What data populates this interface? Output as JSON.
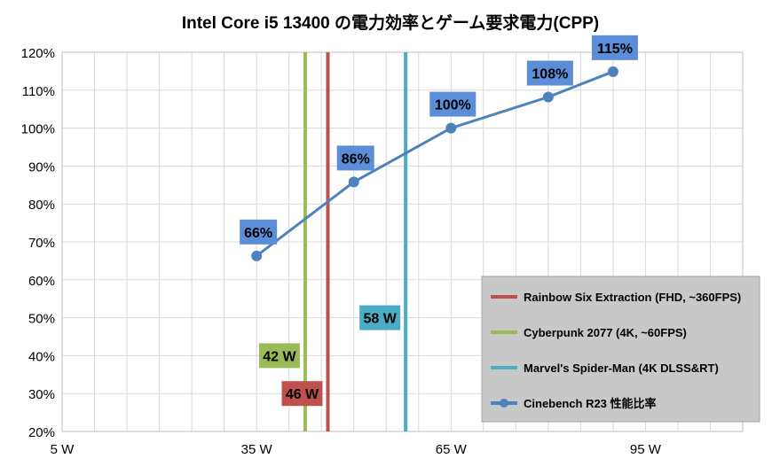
{
  "colors": {
    "rainbow": "#c0504d",
    "cyberpunk": "#9bbb59",
    "spiderman": "#4bacc6",
    "cinebench": "#4f81bd",
    "label_box": "#5b8ed6",
    "legend_bg": "#c8c8c8",
    "grid": "#d9d9d9"
  },
  "chart_data": {
    "type": "line",
    "title": "Intel Core i5 13400 の電力効率とゲーム要求電力(CPP)",
    "xlim": [
      5,
      110
    ],
    "ylim": [
      20,
      120
    ],
    "x_ticks": [
      {
        "value": 5,
        "label": "5 W"
      },
      {
        "value": 35,
        "label": "35 W"
      },
      {
        "value": 65,
        "label": "65 W"
      },
      {
        "value": 95,
        "label": "95 W"
      }
    ],
    "x_grid_step": 5,
    "y_ticks": [
      {
        "value": 20,
        "label": "20%"
      },
      {
        "value": 30,
        "label": "30%"
      },
      {
        "value": 40,
        "label": "40%"
      },
      {
        "value": 50,
        "label": "50%"
      },
      {
        "value": 60,
        "label": "60%"
      },
      {
        "value": 70,
        "label": "70%"
      },
      {
        "value": 80,
        "label": "80%"
      },
      {
        "value": 90,
        "label": "90%"
      },
      {
        "value": 100,
        "label": "100%"
      },
      {
        "value": 110,
        "label": "110%"
      },
      {
        "value": 120,
        "label": "120%"
      }
    ],
    "grid": true,
    "legend_position": "bottom-right",
    "vlines": [
      {
        "name": "Rainbow Six Extraction (FHD, ~360FPS)",
        "x": 46,
        "label": "46 W",
        "label_y": 30,
        "color": "#c0504d"
      },
      {
        "name": "Cyberpunk 2077 (4K, ~60FPS)",
        "x": 42.5,
        "label": "42 W",
        "label_y": 40,
        "color": "#9bbb59"
      },
      {
        "name": "Marvel's Spider-Man (4K DLSS&RT)",
        "x": 58,
        "label": "58 W",
        "label_y": 50,
        "color": "#4bacc6"
      }
    ],
    "series": [
      {
        "name": "Cinebench R23 性能比率",
        "color": "#4f81bd",
        "x": [
          35,
          50,
          65,
          80,
          90
        ],
        "y": [
          66.3,
          85.8,
          100,
          108.2,
          114.9
        ],
        "labels": [
          "66%",
          "86%",
          "100%",
          "108%",
          "115%"
        ]
      }
    ]
  }
}
